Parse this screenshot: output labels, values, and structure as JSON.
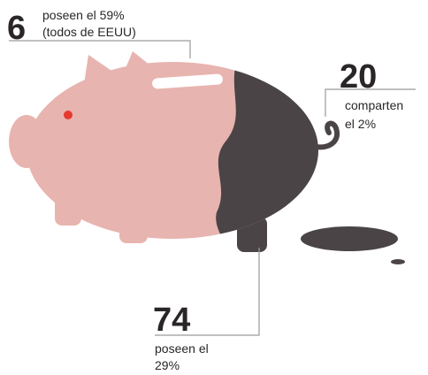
{
  "callouts": [
    {
      "number": "6",
      "lines": [
        "poseen el 59%",
        "(todos de EEUU)"
      ]
    },
    {
      "number": "20",
      "lines": [
        "comparten",
        "el 2%"
      ]
    },
    {
      "number": "74",
      "lines": [
        "poseen el",
        "29%"
      ]
    }
  ]
}
